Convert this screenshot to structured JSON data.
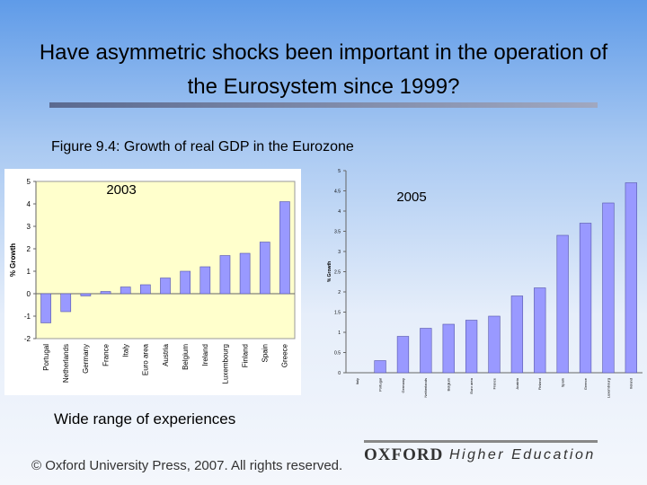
{
  "title": "Have asymmetric shocks been important in the operation of the Eurosystem since 1999?",
  "caption": "Figure 9.4: Growth of real GDP in the Eurozone",
  "note": "Wide range of experiences",
  "footer": {
    "copyright": "© Oxford University Press, 2007. All rights reserved.",
    "brand": "OXFORD",
    "brand_sub": "Higher Education"
  },
  "chart_data": [
    {
      "type": "bar",
      "title": "2003",
      "ylabel": "% Growth",
      "categories": [
        "Portugal",
        "Netherlands",
        "Germany",
        "France",
        "Italy",
        "Euro area",
        "Austria",
        "Belgium",
        "Ireland",
        "Luxembourg",
        "Finland",
        "Spain",
        "Greece"
      ],
      "values": [
        -1.3,
        -0.8,
        -0.1,
        0.1,
        0.3,
        0.4,
        0.7,
        1.0,
        1.2,
        1.7,
        1.8,
        2.3,
        4.1
      ],
      "color": "#9999ff",
      "ylim": [
        -2,
        5
      ],
      "yticks": [
        -2,
        -1,
        0,
        1,
        2,
        3,
        4,
        5
      ],
      "grid": false
    },
    {
      "type": "bar",
      "title": "2005",
      "ylabel": "% Growth",
      "categories": [
        "Italy",
        "Portugal",
        "Germany",
        "Netherlands",
        "Belgium",
        "Euro area",
        "France",
        "Austria",
        "Finland",
        "Spain",
        "Greece",
        "Luxembourg",
        "Ireland"
      ],
      "values": [
        0,
        0.3,
        0.9,
        1.1,
        1.2,
        1.3,
        1.4,
        1.9,
        2.1,
        3.4,
        3.7,
        4.2,
        4.7
      ],
      "color": "#9999ff",
      "ylim": [
        0,
        5
      ],
      "yticks": [
        0,
        0.5,
        1,
        1.5,
        2,
        2.5,
        3,
        3.5,
        4,
        4.5,
        5
      ],
      "grid": false
    }
  ]
}
